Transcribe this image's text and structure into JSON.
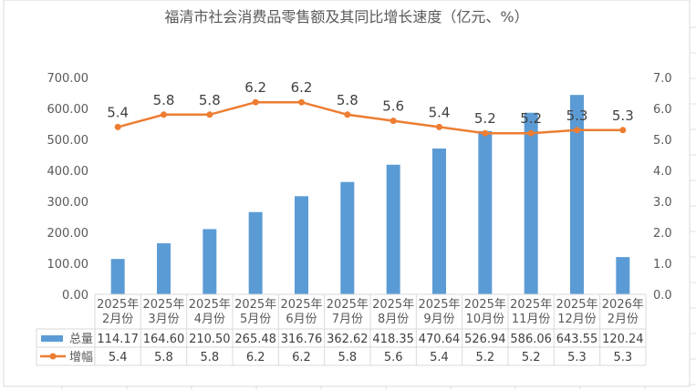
{
  "chart_data": {
    "type": "bar+line",
    "title": "福清市社会消费品零售额及其同比增长速度（亿元、%）",
    "categories": [
      [
        "2025年",
        "2月份"
      ],
      [
        "2025年",
        "3月份"
      ],
      [
        "2025年",
        "4月份"
      ],
      [
        "2025年",
        "5月份"
      ],
      [
        "2025年",
        "6月份"
      ],
      [
        "2025年",
        "7月份"
      ],
      [
        "2025年",
        "8月份"
      ],
      [
        "2025年",
        "9月份"
      ],
      [
        "2025年",
        "10月份"
      ],
      [
        "2025年",
        "11月份"
      ],
      [
        "2025年",
        "12月份"
      ],
      [
        "2026年",
        "2月份"
      ]
    ],
    "series": [
      {
        "name": "总量",
        "type": "bar",
        "axis": "left",
        "color": "#5b9bd5",
        "values": [
          114.17,
          164.6,
          210.5,
          265.48,
          316.76,
          362.62,
          418.35,
          470.64,
          526.94,
          586.06,
          643.55,
          120.24
        ],
        "labels": [
          "114.17",
          "164.60",
          "210.50",
          "265.48",
          "316.76",
          "362.62",
          "418.35",
          "470.64",
          "526.94",
          "586.06",
          "643.55",
          "120.24"
        ]
      },
      {
        "name": "增幅",
        "type": "line",
        "axis": "right",
        "color": "#ed7d31",
        "values": [
          5.4,
          5.8,
          5.8,
          6.2,
          6.2,
          5.8,
          5.6,
          5.4,
          5.2,
          5.2,
          5.3,
          5.3
        ],
        "labels": [
          "5.4",
          "5.8",
          "5.8",
          "6.2",
          "6.2",
          "5.8",
          "5.6",
          "5.4",
          "5.2",
          "5.2",
          "5.3",
          "5.3"
        ]
      }
    ],
    "left_axis": {
      "ylim": [
        0,
        700
      ],
      "ticks": [
        "0.00",
        "100.00",
        "200.00",
        "300.00",
        "400.00",
        "500.00",
        "600.00",
        "700.00"
      ]
    },
    "right_axis": {
      "ylim": [
        0,
        7
      ],
      "ticks": [
        "0.0",
        "1.0",
        "2.0",
        "3.0",
        "4.0",
        "5.0",
        "6.0",
        "7.0"
      ]
    },
    "grid": false,
    "legend": "data-table"
  }
}
